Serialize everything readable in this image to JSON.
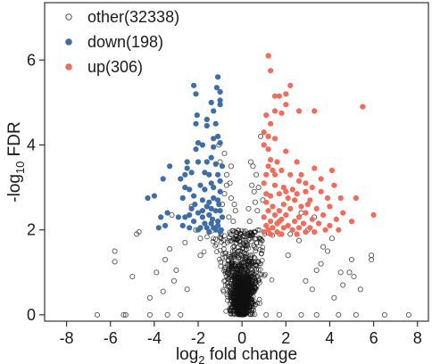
{
  "chart_data": {
    "type": "scatter",
    "xlabel": "log2 fold change",
    "xlabel_parts": {
      "pre": "log",
      "sub": "2",
      "post": " fold change"
    },
    "ylabel": "-log10 FDR",
    "ylabel_parts": {
      "pre": "-log",
      "sub": "10",
      "post": " FDR"
    },
    "xlim": [
      -9,
      8.5
    ],
    "ylim": [
      -0.15,
      7.35
    ],
    "xticks": [
      -8,
      -6,
      -4,
      -2,
      0,
      2,
      4,
      6,
      8
    ],
    "yticks": [
      0,
      2,
      4,
      6
    ],
    "grid": false,
    "legend_position": "top-left",
    "legend": [
      "other(32338)",
      "down(198)",
      "up(306)"
    ],
    "series": [
      {
        "name": "other(32338)",
        "color": "#555555",
        "marker": "hollow-circle",
        "points": [
          [
            -6.6,
            0.0
          ],
          [
            -5.4,
            0.0
          ],
          [
            -5.3,
            0.0
          ],
          [
            -4.2,
            0.0
          ],
          [
            -3.4,
            0.0
          ],
          [
            -2.8,
            0.0
          ],
          [
            1.1,
            0.0
          ],
          [
            1.7,
            0.0
          ],
          [
            2.7,
            0.0
          ],
          [
            3.4,
            0.0
          ],
          [
            4.4,
            0.0
          ],
          [
            5.2,
            0.0
          ],
          [
            6.5,
            0.0
          ],
          [
            7.6,
            0.0
          ],
          [
            -5.8,
            1.5
          ],
          [
            -5.8,
            1.25
          ],
          [
            -4.8,
            1.9
          ],
          [
            -4.7,
            1.95
          ],
          [
            -5.0,
            0.9
          ],
          [
            -4.2,
            0.4
          ],
          [
            -3.3,
            1.55
          ],
          [
            -3.5,
            1.3
          ],
          [
            -3.2,
            2.35
          ],
          [
            -2.6,
            1.7
          ],
          [
            -2.1,
            2.0
          ],
          [
            -1.9,
            1.4
          ],
          [
            -3.0,
            1.05
          ],
          [
            -3.1,
            0.8
          ],
          [
            -2.5,
            0.6
          ],
          [
            -2.3,
            2.55
          ],
          [
            -3.6,
            0.55
          ],
          [
            -0.8,
            3.8
          ],
          [
            -0.5,
            3.5
          ],
          [
            -0.7,
            3.3
          ],
          [
            -0.55,
            3.1
          ],
          [
            -0.8,
            2.85
          ],
          [
            -0.35,
            2.6
          ],
          [
            -0.6,
            2.3
          ],
          [
            -0.3,
            2.45
          ],
          [
            -0.9,
            2.6
          ],
          [
            -1.0,
            3.6
          ],
          [
            -0.7,
            3.05
          ],
          [
            -0.5,
            2.75
          ],
          [
            -1.05,
            4.0
          ],
          [
            -0.4,
            2.2
          ],
          [
            0.4,
            3.6
          ],
          [
            0.5,
            3.5
          ],
          [
            0.65,
            3.3
          ],
          [
            0.85,
            4.2
          ],
          [
            0.3,
            2.5
          ],
          [
            0.55,
            2.9
          ],
          [
            0.75,
            3.0
          ],
          [
            0.35,
            2.2
          ],
          [
            0.95,
            2.7
          ],
          [
            0.7,
            2.45
          ],
          [
            0.45,
            3.05
          ],
          [
            0.6,
            2.65
          ],
          [
            2.2,
            1.9
          ],
          [
            2.6,
            1.75
          ],
          [
            3.0,
            2.0
          ],
          [
            3.3,
            2.3
          ],
          [
            3.7,
            1.6
          ],
          [
            3.6,
            1.2
          ],
          [
            4.1,
            1.8
          ],
          [
            3.9,
            1.5
          ],
          [
            3.4,
            1.05
          ],
          [
            2.9,
            0.8
          ],
          [
            4.5,
            1.0
          ],
          [
            4.9,
            1.0
          ],
          [
            5.1,
            0.9
          ],
          [
            5.9,
            1.4
          ],
          [
            5.9,
            1.3
          ],
          [
            5.0,
            1.3
          ],
          [
            4.2,
            0.4
          ],
          [
            2.7,
            2.4
          ],
          [
            4.6,
            0.7
          ],
          [
            5.4,
            0.6
          ],
          [
            3.2,
            0.6
          ],
          [
            2.1,
            1.4
          ],
          [
            -1.9,
            1.8
          ],
          [
            -3.9,
            1.0
          ]
        ]
      },
      {
        "name": "down(198)",
        "color": "#3e6ea5",
        "marker": "filled-circle",
        "points": [
          [
            -1.1,
            5.6
          ],
          [
            -1.15,
            5.35
          ],
          [
            -2.2,
            5.4
          ],
          [
            -2.1,
            5.2
          ],
          [
            -1.0,
            5.25
          ],
          [
            -1.0,
            5.05
          ],
          [
            -1.4,
            5.0
          ],
          [
            -1.6,
            4.6
          ],
          [
            -1.6,
            4.45
          ],
          [
            -1.3,
            4.8
          ],
          [
            -1.0,
            4.95
          ],
          [
            -2.05,
            4.7
          ],
          [
            -2.1,
            4.5
          ],
          [
            -1.2,
            4.5
          ],
          [
            -1.1,
            4.2
          ],
          [
            -2.0,
            4.05
          ],
          [
            -1.3,
            4.15
          ],
          [
            -1.8,
            4.0
          ],
          [
            -1.0,
            4.05
          ],
          [
            -1.3,
            3.95
          ],
          [
            -2.1,
            3.9
          ],
          [
            -2.5,
            3.6
          ],
          [
            -1.6,
            3.6
          ],
          [
            -1.4,
            3.7
          ],
          [
            -0.9,
            3.5
          ],
          [
            -3.3,
            3.5
          ],
          [
            -2.5,
            3.45
          ],
          [
            -2.6,
            3.3
          ],
          [
            -2.3,
            3.35
          ],
          [
            -1.7,
            3.35
          ],
          [
            -1.5,
            3.3
          ],
          [
            -1.1,
            3.3
          ],
          [
            -3.6,
            3.2
          ],
          [
            -1.4,
            3.1
          ],
          [
            -2.6,
            3.0
          ],
          [
            -2.4,
            2.95
          ],
          [
            -1.9,
            3.05
          ],
          [
            -1.3,
            3.0
          ],
          [
            -2.2,
            2.8
          ],
          [
            -1.0,
            2.9
          ],
          [
            -1.7,
            2.95
          ],
          [
            -4.0,
            2.8
          ],
          [
            -2.7,
            2.75
          ],
          [
            -1.3,
            2.75
          ],
          [
            -1.1,
            2.7
          ],
          [
            -1.5,
            2.65
          ],
          [
            -1.6,
            2.55
          ],
          [
            -1.4,
            2.5
          ],
          [
            -2.3,
            2.5
          ],
          [
            -1.8,
            2.45
          ],
          [
            -1.2,
            2.45
          ],
          [
            -3.4,
            2.4
          ],
          [
            -2.4,
            2.35
          ],
          [
            -2.0,
            2.4
          ],
          [
            -1.5,
            2.35
          ],
          [
            -1.0,
            2.45
          ],
          [
            -0.9,
            2.3
          ],
          [
            -2.6,
            2.3
          ],
          [
            -3.7,
            2.3
          ],
          [
            -2.9,
            2.3
          ],
          [
            -1.8,
            2.3
          ],
          [
            -1.1,
            2.2
          ],
          [
            -2.2,
            2.2
          ],
          [
            -1.7,
            2.15
          ],
          [
            -1.4,
            2.15
          ],
          [
            -1.3,
            2.05
          ],
          [
            -3.5,
            2.1
          ],
          [
            -2.7,
            2.1
          ],
          [
            -1.9,
            2.05
          ],
          [
            -1.1,
            2.1
          ],
          [
            -2.4,
            2.05
          ],
          [
            -1.6,
            2.05
          ],
          [
            -1.2,
            2.0
          ],
          [
            -0.95,
            2.0
          ],
          [
            -1.5,
            1.95
          ],
          [
            -2.0,
            2.0
          ],
          [
            -1.0,
            1.95
          ],
          [
            -4.3,
            2.75
          ],
          [
            -3.8,
            2.05
          ],
          [
            -1.2,
            3.55
          ],
          [
            -2.8,
            3.2
          ],
          [
            -2.0,
            3.6
          ],
          [
            -1.8,
            2.7
          ],
          [
            -1.0,
            3.15
          ],
          [
            -1.35,
            2.25
          ],
          [
            -1.05,
            2.6
          ],
          [
            -2.15,
            2.6
          ]
        ]
      },
      {
        "name": "up(306)",
        "color": "#f26b5b",
        "marker": "filled-circle",
        "points": [
          [
            1.2,
            6.1
          ],
          [
            1.3,
            5.75
          ],
          [
            2.2,
            5.4
          ],
          [
            2.0,
            5.2
          ],
          [
            1.5,
            5.15
          ],
          [
            1.7,
            5.15
          ],
          [
            5.5,
            4.9
          ],
          [
            2.0,
            4.95
          ],
          [
            1.5,
            4.8
          ],
          [
            1.8,
            4.75
          ],
          [
            2.6,
            4.8
          ],
          [
            3.3,
            4.8
          ],
          [
            1.1,
            4.7
          ],
          [
            1.3,
            4.5
          ],
          [
            1.0,
            4.3
          ],
          [
            1.2,
            4.2
          ],
          [
            1.5,
            4.15
          ],
          [
            1.0,
            4.0
          ],
          [
            1.2,
            3.9
          ],
          [
            1.3,
            3.65
          ],
          [
            2.0,
            3.85
          ],
          [
            1.6,
            3.6
          ],
          [
            2.5,
            3.6
          ],
          [
            1.2,
            3.5
          ],
          [
            1.8,
            3.4
          ],
          [
            1.1,
            3.3
          ],
          [
            3.3,
            3.45
          ],
          [
            1.5,
            3.3
          ],
          [
            4.1,
            3.4
          ],
          [
            3.6,
            3.2
          ],
          [
            2.2,
            3.3
          ],
          [
            1.0,
            3.1
          ],
          [
            2.6,
            3.15
          ],
          [
            2.9,
            3.1
          ],
          [
            1.5,
            3.05
          ],
          [
            1.9,
            3.0
          ],
          [
            4.2,
            3.05
          ],
          [
            3.2,
            3.0
          ],
          [
            2.3,
            2.95
          ],
          [
            2.9,
            2.9
          ],
          [
            3.6,
            2.9
          ],
          [
            2.5,
            2.85
          ],
          [
            1.7,
            2.85
          ],
          [
            1.3,
            2.8
          ],
          [
            2.1,
            2.75
          ],
          [
            3.9,
            2.75
          ],
          [
            4.5,
            2.75
          ],
          [
            5.2,
            2.75
          ],
          [
            2.4,
            2.7
          ],
          [
            1.1,
            2.65
          ],
          [
            1.9,
            2.6
          ],
          [
            3.0,
            2.6
          ],
          [
            2.7,
            2.55
          ],
          [
            1.4,
            2.55
          ],
          [
            4.0,
            2.55
          ],
          [
            3.4,
            2.5
          ],
          [
            2.2,
            2.5
          ],
          [
            1.7,
            2.45
          ],
          [
            1.2,
            2.45
          ],
          [
            2.9,
            2.4
          ],
          [
            4.6,
            2.4
          ],
          [
            1.5,
            2.35
          ],
          [
            2.0,
            2.35
          ],
          [
            3.7,
            2.35
          ],
          [
            2.6,
            2.3
          ],
          [
            1.0,
            2.3
          ],
          [
            3.2,
            2.25
          ],
          [
            1.8,
            2.25
          ],
          [
            4.3,
            2.25
          ],
          [
            1.3,
            2.2
          ],
          [
            2.4,
            2.2
          ],
          [
            6.0,
            2.35
          ],
          [
            1.6,
            2.15
          ],
          [
            2.8,
            2.15
          ],
          [
            3.5,
            2.15
          ],
          [
            1.1,
            2.1
          ],
          [
            2.1,
            2.1
          ],
          [
            4.0,
            2.1
          ],
          [
            1.4,
            2.05
          ],
          [
            1.9,
            2.05
          ],
          [
            2.6,
            2.05
          ],
          [
            3.1,
            2.05
          ],
          [
            1.2,
            2.0
          ],
          [
            2.3,
            2.0
          ],
          [
            3.8,
            2.0
          ],
          [
            1.0,
            1.95
          ],
          [
            1.6,
            1.95
          ],
          [
            2.9,
            1.95
          ],
          [
            1.8,
            1.9
          ],
          [
            1.3,
            1.9
          ],
          [
            2.5,
            1.9
          ],
          [
            3.3,
            1.95
          ],
          [
            2.0,
            2.9
          ],
          [
            1.4,
            3.4
          ],
          [
            1.1,
            2.85
          ],
          [
            2.7,
            3.3
          ],
          [
            3.1,
            2.7
          ],
          [
            1.7,
            2.2
          ],
          [
            4.4,
            2.0
          ],
          [
            5.0,
            2.2
          ]
        ]
      }
    ]
  }
}
